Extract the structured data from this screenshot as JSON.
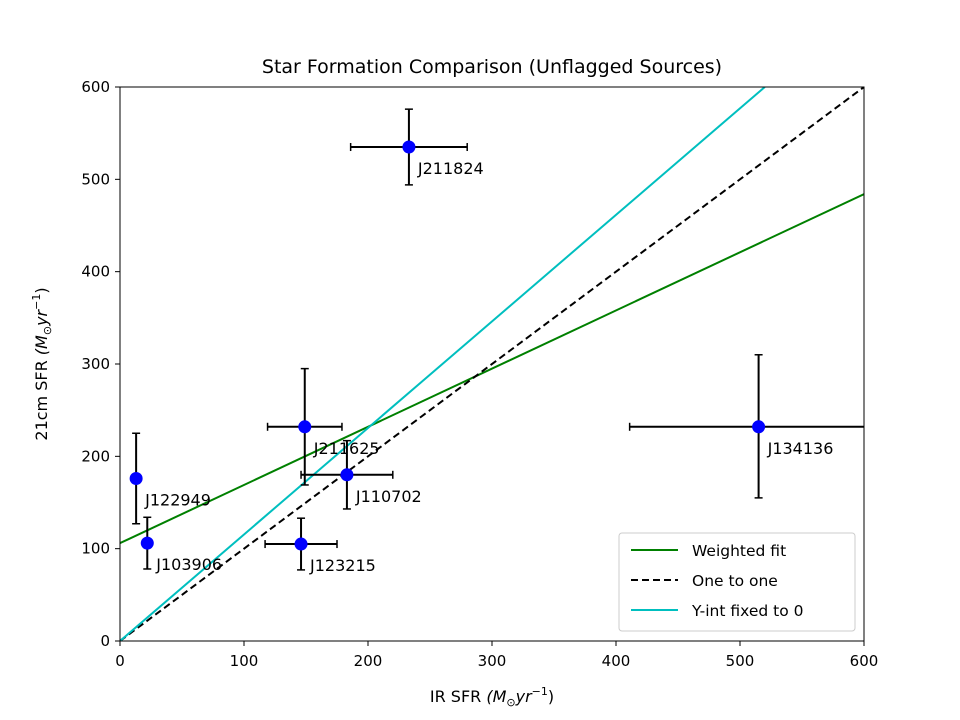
{
  "chart_data": {
    "type": "scatter",
    "title": "Star Formation Comparison (Unflagged Sources)",
    "xlabel": "IR SFR",
    "xlabel_unit": "(M",
    "xlabel_unit_sub": "⊙",
    "xlabel_unit_rest": "yr",
    "xlabel_unit_sup": "−1",
    "xlabel_unit_close": ")",
    "ylabel": "21cm SFR",
    "xlim": [
      0,
      600
    ],
    "ylim": [
      0,
      600
    ],
    "xticks": [
      0,
      100,
      200,
      300,
      400,
      500,
      600
    ],
    "yticks": [
      0,
      100,
      200,
      300,
      400,
      500,
      600
    ],
    "grid": false,
    "legend_position": "lower-right",
    "points": [
      {
        "label": "J211824",
        "x": 233,
        "y": 535,
        "xerr": 47,
        "yerr_low": 41,
        "yerr_high": 41
      },
      {
        "label": "J211625",
        "x": 149,
        "y": 232,
        "xerr": 30,
        "yerr_low": 63,
        "yerr_high": 63
      },
      {
        "label": "J110702",
        "x": 183,
        "y": 180,
        "xerr": 37,
        "yerr_low": 37,
        "yerr_high": 37
      },
      {
        "label": "J122949",
        "x": 13,
        "y": 176,
        "xerr": 0,
        "yerr_low": 49,
        "yerr_high": 49
      },
      {
        "label": "J103906",
        "x": 22,
        "y": 106,
        "xerr": 0,
        "yerr_low": 28,
        "yerr_high": 28
      },
      {
        "label": "J123215",
        "x": 146,
        "y": 105,
        "xerr": 29,
        "yerr_low": 28,
        "yerr_high": 28
      },
      {
        "label": "J134136",
        "x": 515,
        "y": 232,
        "xerr": 104,
        "yerr_low": 77,
        "yerr_high": 78
      }
    ],
    "lines": [
      {
        "name": "Weighted fit",
        "color": "#008000",
        "dash": "solid",
        "x": [
          0,
          600
        ],
        "y": [
          106,
          484
        ]
      },
      {
        "name": "One to one",
        "color": "#000000",
        "dash": "dashed",
        "x": [
          0,
          600
        ],
        "y": [
          0,
          600
        ]
      },
      {
        "name": "Y-int fixed to 0",
        "color": "#00bfbf",
        "dash": "solid",
        "x": [
          0,
          520
        ],
        "y": [
          0,
          600
        ]
      }
    ],
    "marker_color": "#0000ff",
    "errorbar_color": "#000000"
  }
}
